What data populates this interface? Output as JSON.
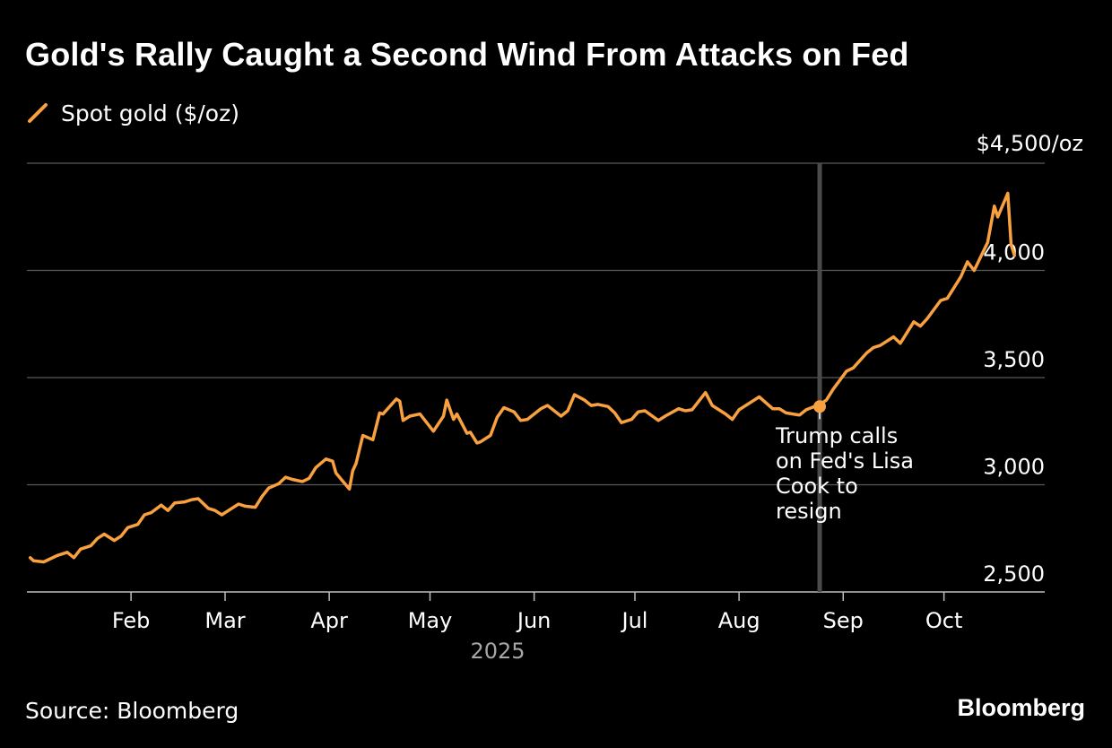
{
  "title": "Gold's Rally Caught a Second Wind From Attacks on Fed",
  "legend": {
    "label": "Spot gold ($/oz)"
  },
  "source": "Source: Bloomberg",
  "brand": "Bloomberg",
  "colors": {
    "background": "#000000",
    "line": "#F9A03F",
    "grid": "#5a5a5a",
    "axis": "#bdbdbd",
    "annotation_line": "#4a4a4a",
    "text": "#ffffff",
    "muted_text": "#a6a6a6"
  },
  "chart_data": {
    "type": "line",
    "title": "Gold's Rally Caught a Second Wind From Attacks on Fed",
    "xlabel": "2025",
    "ylabel": "",
    "ylim": [
      2500,
      4500
    ],
    "yticks": [
      2500,
      3000,
      3500,
      4000,
      4500
    ],
    "ytick_labels": [
      "2,500",
      "3,000",
      "3,500",
      "4,000",
      "$4,500/oz"
    ],
    "xlim": [
      "2025-01-01",
      "2025-10-31"
    ],
    "xticks": [
      "2025-02-01",
      "2025-03-01",
      "2025-04-01",
      "2025-05-01",
      "2025-06-01",
      "2025-07-01",
      "2025-08-01",
      "2025-09-01",
      "2025-10-01"
    ],
    "xtick_labels": [
      "Feb",
      "Mar",
      "Apr",
      "May",
      "Jun",
      "Jul",
      "Aug",
      "Sep",
      "Oct"
    ],
    "grid": true,
    "legend_position": "top-left",
    "series": [
      {
        "name": "Spot gold ($/oz)",
        "x": [
          "2025-01-02",
          "2025-01-03",
          "2025-01-06",
          "2025-01-08",
          "2025-01-10",
          "2025-01-13",
          "2025-01-15",
          "2025-01-17",
          "2025-01-20",
          "2025-01-22",
          "2025-01-24",
          "2025-01-27",
          "2025-01-29",
          "2025-01-31",
          "2025-02-03",
          "2025-02-05",
          "2025-02-07",
          "2025-02-10",
          "2025-02-12",
          "2025-02-14",
          "2025-02-17",
          "2025-02-19",
          "2025-02-21",
          "2025-02-24",
          "2025-02-26",
          "2025-02-28",
          "2025-03-03",
          "2025-03-05",
          "2025-03-07",
          "2025-03-10",
          "2025-03-12",
          "2025-03-14",
          "2025-03-17",
          "2025-03-19",
          "2025-03-21",
          "2025-03-24",
          "2025-03-26",
          "2025-03-28",
          "2025-03-31",
          "2025-04-02",
          "2025-04-03",
          "2025-04-07",
          "2025-04-08",
          "2025-04-09",
          "2025-04-11",
          "2025-04-14",
          "2025-04-16",
          "2025-04-17",
          "2025-04-21",
          "2025-04-22",
          "2025-04-23",
          "2025-04-25",
          "2025-04-28",
          "2025-04-30",
          "2025-05-02",
          "2025-05-05",
          "2025-05-06",
          "2025-05-08",
          "2025-05-09",
          "2025-05-12",
          "2025-05-13",
          "2025-05-15",
          "2025-05-16",
          "2025-05-19",
          "2025-05-21",
          "2025-05-23",
          "2025-05-26",
          "2025-05-28",
          "2025-05-30",
          "2025-06-03",
          "2025-06-05",
          "2025-06-09",
          "2025-06-11",
          "2025-06-13",
          "2025-06-16",
          "2025-06-18",
          "2025-06-20",
          "2025-06-23",
          "2025-06-25",
          "2025-06-27",
          "2025-06-30",
          "2025-07-02",
          "2025-07-04",
          "2025-07-08",
          "2025-07-10",
          "2025-07-14",
          "2025-07-16",
          "2025-07-18",
          "2025-07-22",
          "2025-07-24",
          "2025-07-28",
          "2025-07-30",
          "2025-08-01",
          "2025-08-05",
          "2025-08-07",
          "2025-08-11",
          "2025-08-13",
          "2025-08-15",
          "2025-08-19",
          "2025-08-21",
          "2025-08-25",
          "2025-08-27",
          "2025-08-29",
          "2025-09-02",
          "2025-09-04",
          "2025-09-08",
          "2025-09-10",
          "2025-09-12",
          "2025-09-16",
          "2025-09-18",
          "2025-09-22",
          "2025-09-24",
          "2025-09-26",
          "2025-09-30",
          "2025-10-02",
          "2025-10-06",
          "2025-10-08",
          "2025-10-10",
          "2025-10-14",
          "2025-10-16",
          "2025-10-17",
          "2025-10-20",
          "2025-10-21",
          "2025-10-22"
        ],
        "values": [
          2660,
          2645,
          2640,
          2655,
          2670,
          2685,
          2660,
          2700,
          2715,
          2750,
          2770,
          2740,
          2760,
          2800,
          2815,
          2860,
          2870,
          2905,
          2880,
          2915,
          2920,
          2930,
          2935,
          2890,
          2880,
          2860,
          2890,
          2910,
          2900,
          2895,
          2945,
          2985,
          3005,
          3035,
          3025,
          3015,
          3030,
          3080,
          3120,
          3110,
          3055,
          2980,
          3065,
          3100,
          3230,
          3210,
          3335,
          3330,
          3400,
          3390,
          3300,
          3320,
          3330,
          3290,
          3250,
          3320,
          3395,
          3305,
          3330,
          3240,
          3245,
          3195,
          3200,
          3230,
          3315,
          3360,
          3340,
          3300,
          3305,
          3355,
          3370,
          3320,
          3345,
          3420,
          3395,
          3370,
          3375,
          3365,
          3335,
          3290,
          3305,
          3340,
          3345,
          3300,
          3320,
          3355,
          3345,
          3350,
          3430,
          3370,
          3330,
          3305,
          3350,
          3390,
          3410,
          3355,
          3355,
          3335,
          3325,
          3350,
          3375,
          3395,
          3445,
          3530,
          3545,
          3615,
          3640,
          3650,
          3690,
          3660,
          3760,
          3740,
          3775,
          3860,
          3870,
          3970,
          4040,
          4000,
          4130,
          4300,
          4250,
          4360,
          4120,
          4070
        ]
      }
    ],
    "annotations": [
      {
        "x": "2025-08-25",
        "y": 3365,
        "text_lines": [
          "Trump calls",
          "on Fed's Lisa",
          "Cook to",
          "resign"
        ]
      }
    ]
  }
}
